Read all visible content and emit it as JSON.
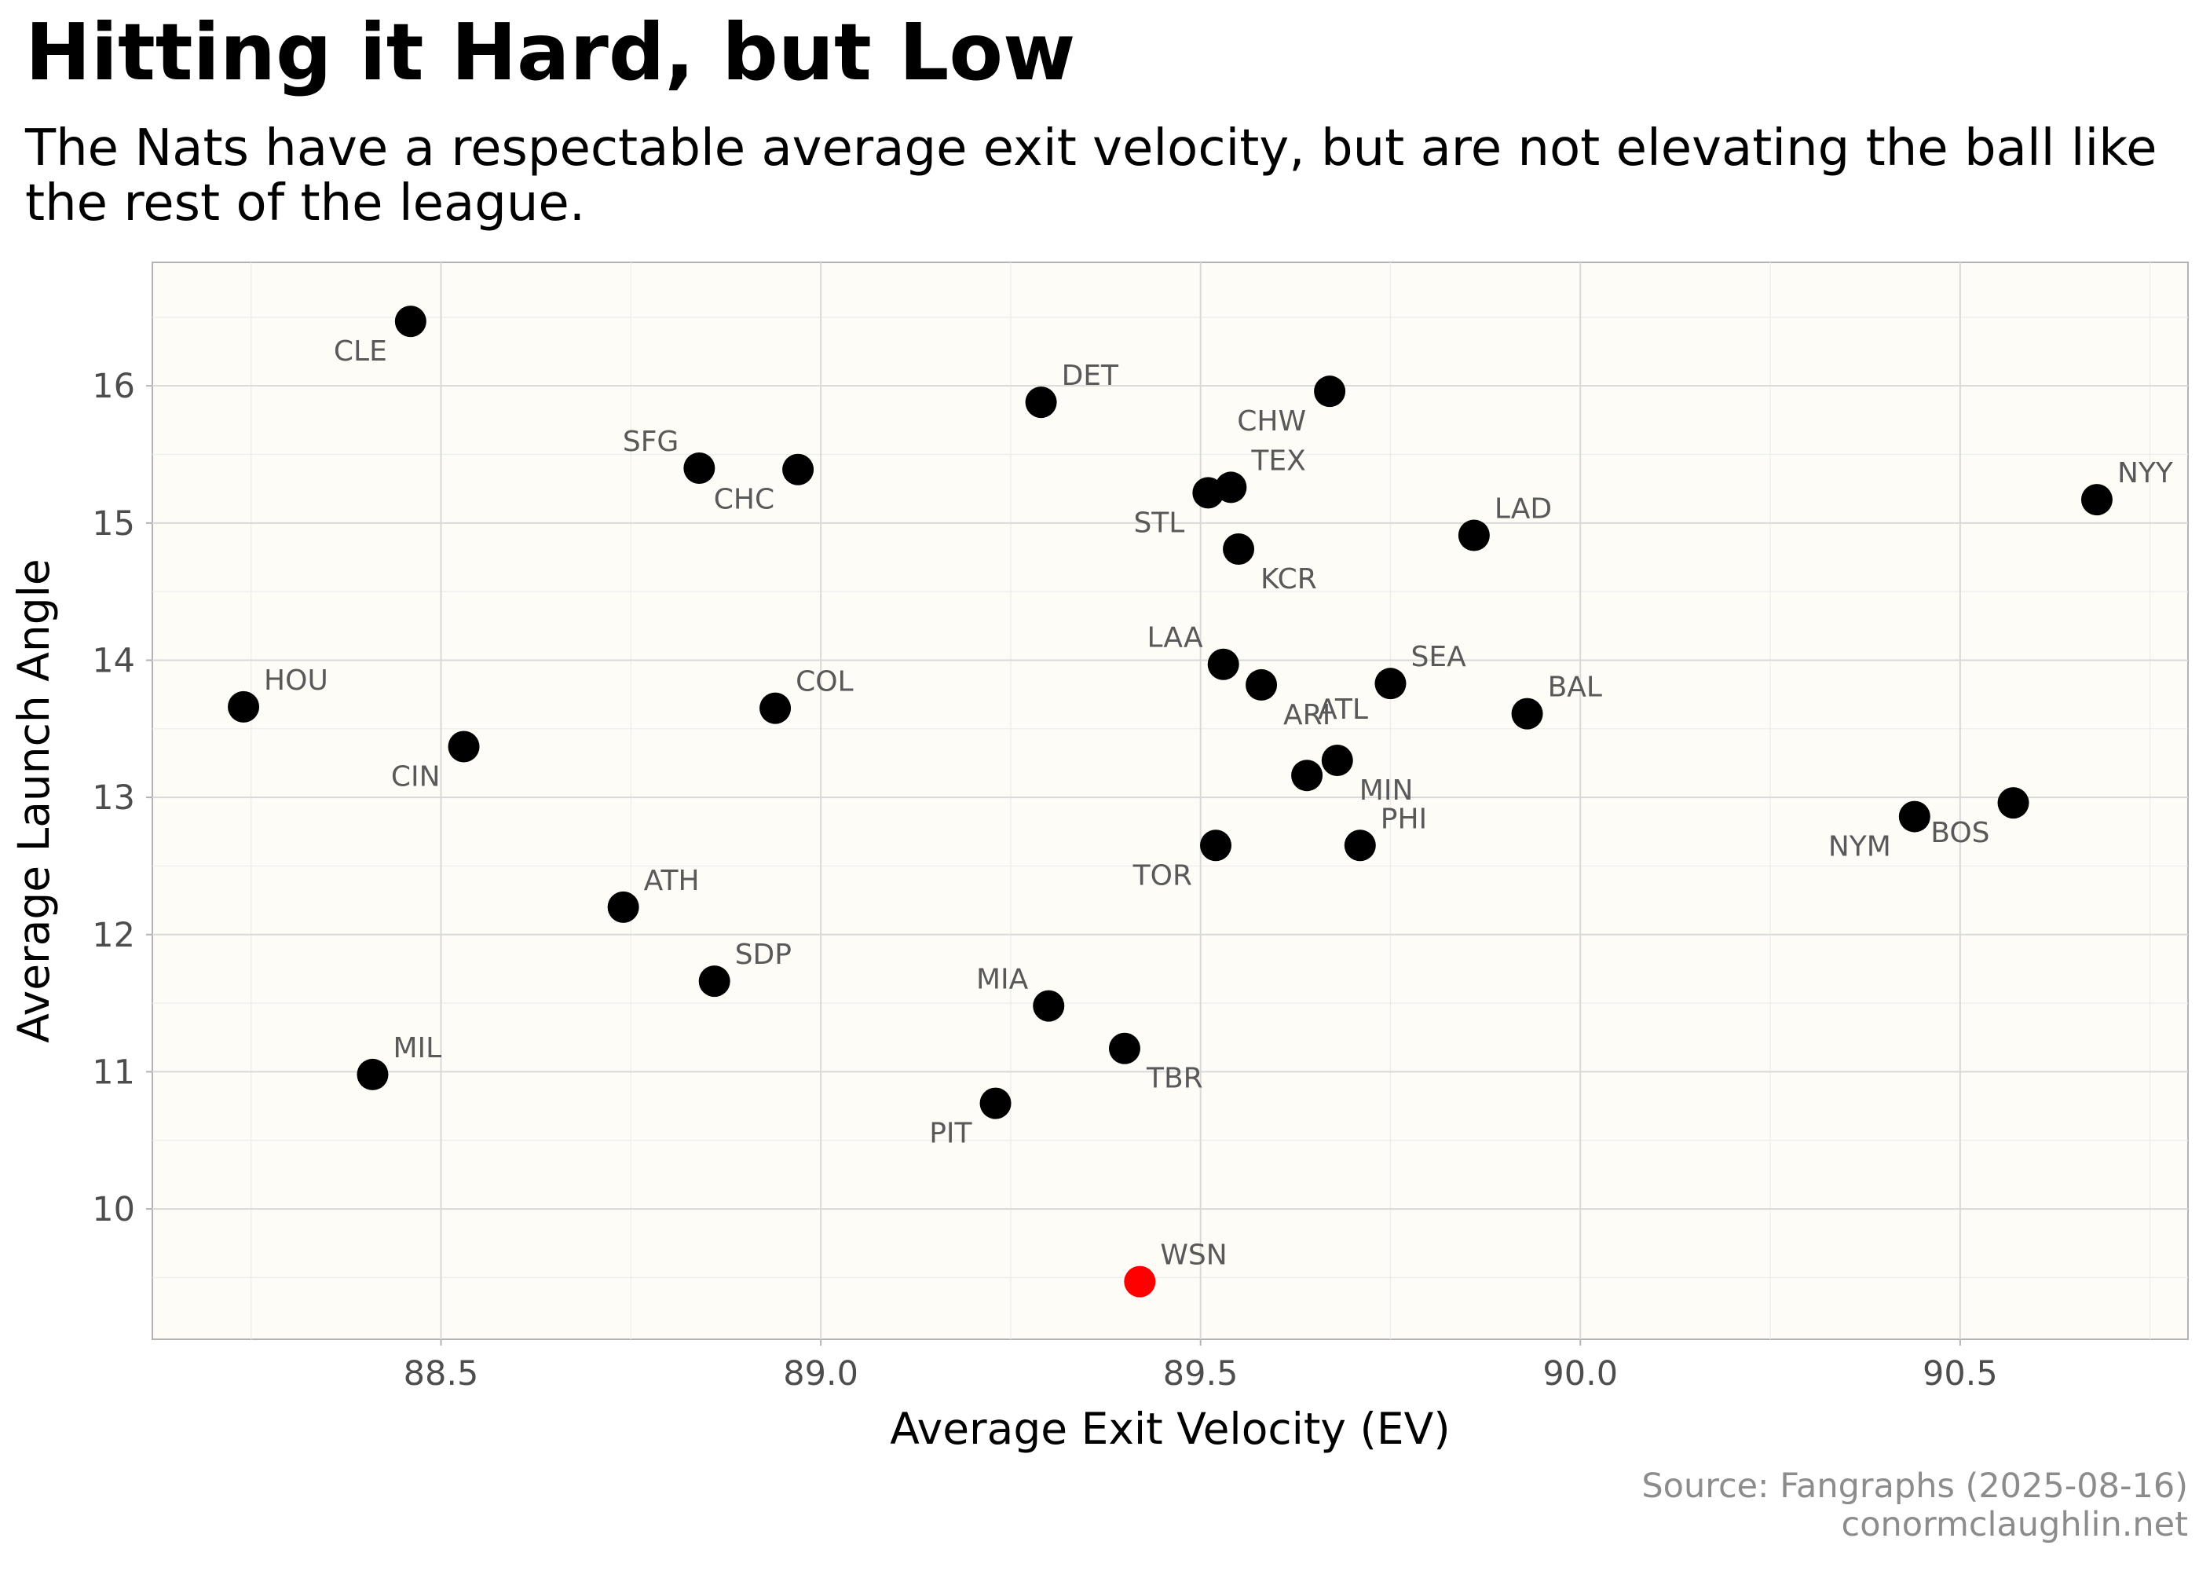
{
  "chart_data": {
    "type": "scatter",
    "title": "Hitting it Hard, but Low",
    "subtitle": "The Nats have a respectable average exit velocity, but are not elevating the ball like the rest of the league.",
    "xlabel": "Average Exit Velocity (EV)",
    "ylabel": "Average Launch Angle",
    "xlim": [
      88.12,
      90.8
    ],
    "ylim": [
      9.05,
      16.9
    ],
    "xticks": [
      88.5,
      89.0,
      89.5,
      90.0,
      90.5
    ],
    "xtick_labels": [
      "88.5",
      "89.0",
      "89.5",
      "90.0",
      "90.5"
    ],
    "yticks": [
      10,
      11,
      12,
      13,
      14,
      15,
      16
    ],
    "ytick_labels": [
      "10",
      "11",
      "12",
      "13",
      "14",
      "15",
      "16"
    ],
    "grid": true,
    "colors": {
      "default": "#000000",
      "highlight": "#ff0000",
      "panel": "#fdfcf7",
      "grid": "#d9d9d9"
    },
    "points": [
      {
        "team": "CLE",
        "x": 88.46,
        "y": 16.47,
        "label_pos": "bl"
      },
      {
        "team": "DET",
        "x": 89.29,
        "y": 15.88,
        "label_pos": "tr"
      },
      {
        "team": "CHW",
        "x": 89.67,
        "y": 15.96,
        "label_pos": "bl"
      },
      {
        "team": "SFG",
        "x": 88.84,
        "y": 15.4,
        "label_pos": "tl"
      },
      {
        "team": "CHC",
        "x": 88.97,
        "y": 15.39,
        "label_pos": "bl"
      },
      {
        "team": "TEX",
        "x": 89.54,
        "y": 15.26,
        "label_pos": "tr"
      },
      {
        "team": "STL",
        "x": 89.51,
        "y": 15.22,
        "label_pos": "bl"
      },
      {
        "team": "NYY",
        "x": 90.68,
        "y": 15.17,
        "label_pos": "tr"
      },
      {
        "team": "LAD",
        "x": 89.86,
        "y": 14.91,
        "label_pos": "tr"
      },
      {
        "team": "KCR",
        "x": 89.55,
        "y": 14.81,
        "label_pos": "br"
      },
      {
        "team": "LAA",
        "x": 89.53,
        "y": 13.97,
        "label_pos": "tl"
      },
      {
        "team": "SEA",
        "x": 89.75,
        "y": 13.83,
        "label_pos": "tr"
      },
      {
        "team": "ARI",
        "x": 89.58,
        "y": 13.82,
        "label_pos": "br"
      },
      {
        "team": "HOU",
        "x": 88.24,
        "y": 13.66,
        "label_pos": "tr"
      },
      {
        "team": "COL",
        "x": 88.94,
        "y": 13.65,
        "label_pos": "tr"
      },
      {
        "team": "BAL",
        "x": 89.93,
        "y": 13.61,
        "label_pos": "tr"
      },
      {
        "team": "CIN",
        "x": 88.53,
        "y": 13.37,
        "label_pos": "bl"
      },
      {
        "team": "MIN",
        "x": 89.68,
        "y": 13.27,
        "label_pos": "br"
      },
      {
        "team": "ATL",
        "x": 89.64,
        "y": 13.16,
        "label_pos": "tl_far"
      },
      {
        "team": "BOS",
        "x": 90.57,
        "y": 12.96,
        "label_pos": "bl"
      },
      {
        "team": "NYM",
        "x": 90.44,
        "y": 12.86,
        "label_pos": "bl"
      },
      {
        "team": "PHI",
        "x": 89.71,
        "y": 12.65,
        "label_pos": "tr"
      },
      {
        "team": "TOR",
        "x": 89.52,
        "y": 12.65,
        "label_pos": "bl"
      },
      {
        "team": "ATH",
        "x": 88.74,
        "y": 12.2,
        "label_pos": "tr"
      },
      {
        "team": "SDP",
        "x": 88.86,
        "y": 11.66,
        "label_pos": "tr"
      },
      {
        "team": "MIA",
        "x": 89.3,
        "y": 11.48,
        "label_pos": "tl"
      },
      {
        "team": "TBR",
        "x": 89.4,
        "y": 11.17,
        "label_pos": "br"
      },
      {
        "team": "MIL",
        "x": 88.41,
        "y": 10.98,
        "label_pos": "tr"
      },
      {
        "team": "PIT",
        "x": 89.23,
        "y": 10.77,
        "label_pos": "bl"
      },
      {
        "team": "WSN",
        "x": 89.42,
        "y": 9.47,
        "label_pos": "tr",
        "highlight": true
      }
    ]
  },
  "caption": {
    "source": "Source: Fangraphs (2025-08-16)",
    "site": "conormclaughlin.net"
  }
}
